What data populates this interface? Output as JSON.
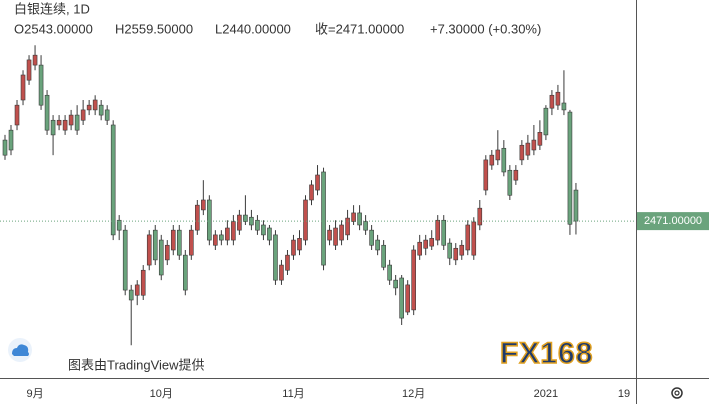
{
  "chart_data": {
    "type": "candlestick",
    "title": "白银连续, 1D",
    "legend_values": [
      "O2543.00000",
      "H2559.50000",
      "L2440.00000",
      "收=2471.00000",
      "+7.30000 (+0.30%)"
    ],
    "last_price": {
      "value": 2471,
      "label": "2471.00000"
    },
    "credit": "图表由TradingView提供",
    "watermark": "FX168",
    "up_color": "#c0504d",
    "down_color": "#6aa37c",
    "ylim": [
      2107,
      2984
    ],
    "categories": [
      null,
      null,
      null,
      null,
      null,
      "9月",
      null,
      null,
      null,
      null,
      null,
      null,
      null,
      null,
      null,
      null,
      null,
      null,
      null,
      null,
      null,
      null,
      null,
      null,
      null,
      null,
      "10月",
      null,
      null,
      null,
      null,
      null,
      null,
      null,
      null,
      null,
      null,
      null,
      null,
      null,
      null,
      null,
      null,
      null,
      null,
      null,
      null,
      null,
      "11月",
      null,
      null,
      null,
      null,
      null,
      null,
      null,
      null,
      null,
      null,
      null,
      null,
      null,
      null,
      null,
      null,
      null,
      null,
      null,
      "12月",
      null,
      null,
      null,
      null,
      null,
      null,
      null,
      null,
      null,
      null,
      null,
      null,
      null,
      null,
      null,
      null,
      null,
      null,
      null,
      null,
      null,
      "2021",
      null,
      null,
      null,
      null,
      null,
      null,
      null,
      null,
      null,
      null,
      null,
      null,
      "19"
    ],
    "open": [
      2659,
      2682,
      2694,
      2752,
      2798,
      2833,
      2833,
      2763,
      2705,
      2694,
      2682,
      2694,
      2717,
      2705,
      2729,
      2729,
      2740,
      2729,
      2694,
      2473,
      2450,
      2311,
      2299,
      2299,
      2369,
      2450,
      2427,
      2381,
      2404,
      2450,
      2392,
      2392,
      2450,
      2497,
      2520,
      2415,
      2439,
      2427,
      2427,
      2450,
      2485,
      2480,
      2473,
      2462,
      2455,
      2439,
      2334,
      2357,
      2392,
      2404,
      2427,
      2520,
      2543,
      2585,
      2427,
      2415,
      2427,
      2439,
      2470,
      2490,
      2470,
      2450,
      2427,
      2415,
      2369,
      2334,
      2339,
      2260,
      2265,
      2392,
      2408,
      2413,
      2427,
      2473,
      2420,
      2381,
      2392,
      2404,
      2392,
      2462,
      2543,
      2601,
      2613,
      2640,
      2589,
      2566,
      2613,
      2624,
      2636,
      2647,
      2733,
      2733,
      2740,
      2745,
      2724,
      2543,
      null,
      null,
      null,
      null,
      null,
      null,
      null,
      null
    ],
    "high": [
      2671,
      2694,
      2752,
      2821,
      2856,
      2879,
      2856,
      2775,
      2717,
      2717,
      2717,
      2729,
      2740,
      2752,
      2752,
      2763,
      2752,
      2740,
      2705,
      2485,
      2462,
      2323,
      2334,
      2369,
      2450,
      2462,
      2439,
      2427,
      2462,
      2462,
      2404,
      2462,
      2520,
      2566,
      2531,
      2450,
      2450,
      2473,
      2485,
      2497,
      2531,
      2497,
      2485,
      2473,
      2462,
      2450,
      2381,
      2404,
      2439,
      2450,
      2531,
      2566,
      2601,
      2595,
      2462,
      2473,
      2473,
      2497,
      2508,
      2508,
      2485,
      2462,
      2439,
      2427,
      2381,
      2346,
      2346,
      2334,
      2415,
      2439,
      2439,
      2450,
      2485,
      2485,
      2431,
      2420,
      2427,
      2473,
      2480,
      2520,
      2624,
      2636,
      2682,
      2659,
      2601,
      2601,
      2659,
      2671,
      2694,
      2705,
      2740,
      2775,
      2787,
      2821,
      2729,
      2559.5,
      null,
      null,
      null,
      null,
      null,
      null,
      null,
      null
    ],
    "low": [
      2613,
      2624,
      2682,
      2740,
      2787,
      2821,
      2729,
      2671,
      2624,
      2682,
      2671,
      2682,
      2671,
      2694,
      2717,
      2717,
      2705,
      2694,
      2427,
      2427,
      2299,
      2183,
      2276,
      2288,
      2357,
      2369,
      2334,
      2369,
      2392,
      2381,
      2299,
      2381,
      2439,
      2485,
      2415,
      2404,
      2415,
      2415,
      2415,
      2439,
      2462,
      2450,
      2439,
      2427,
      2415,
      2323,
      2323,
      2346,
      2381,
      2392,
      2415,
      2508,
      2531,
      2357,
      2415,
      2404,
      2415,
      2427,
      2462,
      2450,
      2439,
      2404,
      2392,
      2357,
      2323,
      2299,
      2230,
      2253,
      2253,
      2381,
      2392,
      2404,
      2415,
      2404,
      2369,
      2369,
      2381,
      2392,
      2381,
      2450,
      2531,
      2590,
      2601,
      2575,
      2520,
      2555,
      2601,
      2613,
      2624,
      2636,
      2659,
      2717,
      2729,
      2717,
      2439,
      2440,
      null,
      null,
      null,
      null,
      null,
      null,
      null,
      null
    ],
    "close": [
      2624,
      2636,
      2740,
      2810,
      2845,
      2856,
      2740,
      2682,
      2671,
      2705,
      2705,
      2717,
      2682,
      2729,
      2740,
      2752,
      2717,
      2705,
      2439,
      2450,
      2311,
      2288,
      2323,
      2357,
      2439,
      2381,
      2346,
      2415,
      2450,
      2392,
      2311,
      2450,
      2508,
      2520,
      2427,
      2439,
      2427,
      2455,
      2470,
      2485,
      2470,
      2462,
      2450,
      2439,
      2427,
      2334,
      2369,
      2392,
      2427,
      2431,
      2520,
      2555,
      2578,
      2369,
      2450,
      2455,
      2462,
      2478,
      2490,
      2462,
      2450,
      2415,
      2404,
      2364,
      2334,
      2316,
      2246,
      2323,
      2404,
      2422,
      2427,
      2431,
      2473,
      2415,
      2385,
      2408,
      2415,
      2462,
      2469,
      2501,
      2613,
      2624,
      2636,
      2585,
      2531,
      2589,
      2647,
      2652,
      2659,
      2677,
      2671,
      2763,
      2770,
      2729,
      2463.7,
      2471,
      null,
      null,
      null,
      null,
      null,
      null,
      null,
      null
    ]
  }
}
